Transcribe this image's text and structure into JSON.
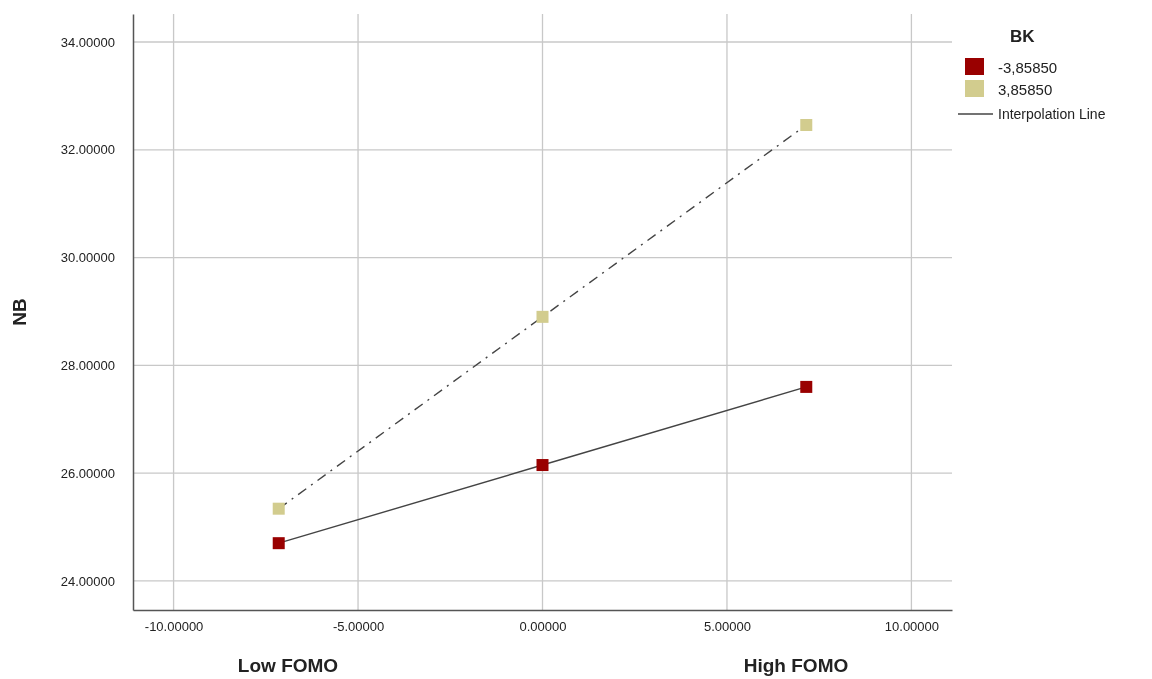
{
  "chart_data": {
    "type": "line",
    "ylabel": "NB",
    "legend_title": "BK",
    "x": [
      -7.15,
      0,
      7.15
    ],
    "series": [
      {
        "name": "-3,85850",
        "color": "#990000",
        "values": [
          24.7,
          26.15,
          27.6
        ],
        "line_style": "solid"
      },
      {
        "name": "3,85850",
        "color": "#d2cc8e",
        "values": [
          25.34,
          28.9,
          32.46
        ],
        "line_style": "dashed"
      }
    ],
    "xlim": [
      -11.1,
      11.1
    ],
    "ylim": [
      23.46,
      34.52
    ],
    "xticks": [
      {
        "value": -10,
        "label": "-10.00000"
      },
      {
        "value": -5,
        "label": "-5.00000"
      },
      {
        "value": 0,
        "label": "0.00000"
      },
      {
        "value": 5,
        "label": "5.00000"
      },
      {
        "value": 10,
        "label": "10.00000"
      }
    ],
    "yticks": [
      {
        "value": 24,
        "label": "24.00000"
      },
      {
        "value": 26,
        "label": "26.00000"
      },
      {
        "value": 28,
        "label": "28.00000"
      },
      {
        "value": 30,
        "label": "30.00000"
      },
      {
        "value": 32,
        "label": "32.00000"
      },
      {
        "value": 34,
        "label": "34.00000"
      }
    ],
    "grid": true,
    "marker": "square",
    "legend": "top right",
    "annotations": [
      "Low FOMO",
      "High FOMO",
      "Interpolation Line"
    ]
  }
}
